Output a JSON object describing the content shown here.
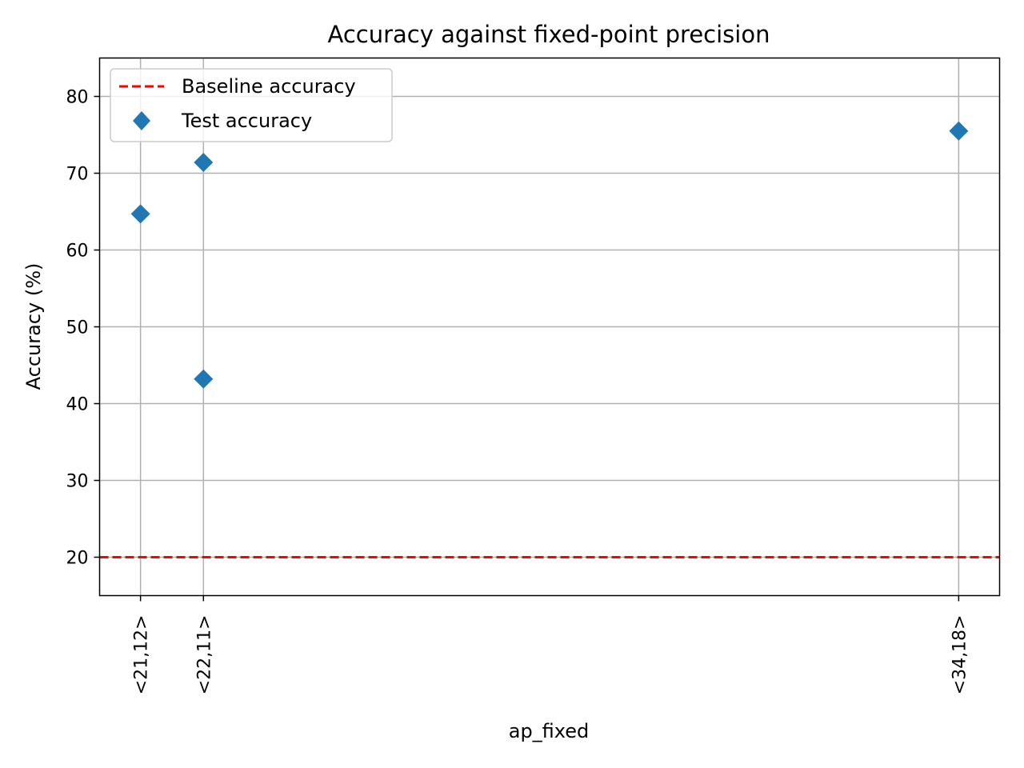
{
  "chart_data": {
    "type": "scatter",
    "title": "Accuracy against fixed-point precision",
    "xlabel": "ap_fixed",
    "ylabel": "Accuracy (%)",
    "x_ticks": [
      "<21,12>",
      "<22,11>",
      "<34,18>"
    ],
    "x_tick_values": [
      21,
      22,
      34
    ],
    "xlim": [
      20.35,
      34.65
    ],
    "y_ticks": [
      20,
      30,
      40,
      50,
      60,
      70,
      80
    ],
    "ylim": [
      15,
      85
    ],
    "grid": true,
    "legend_position": "top-left",
    "series": [
      {
        "name": "Test accuracy",
        "kind": "scatter",
        "marker": "diamond",
        "color": "#1f77b4",
        "points": [
          {
            "x": 21,
            "y": 64.7
          },
          {
            "x": 22,
            "y": 71.4
          },
          {
            "x": 22,
            "y": 43.2
          },
          {
            "x": 34,
            "y": 75.5
          }
        ]
      },
      {
        "name": "Baseline accuracy",
        "kind": "hline",
        "style": "dashed",
        "color": "#ff0000",
        "y": 20
      }
    ]
  }
}
